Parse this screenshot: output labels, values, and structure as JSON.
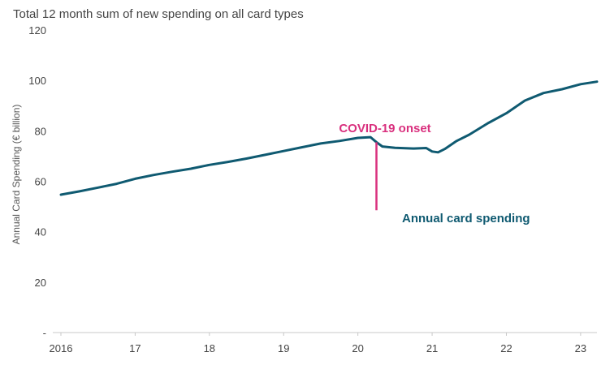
{
  "chart_data": {
    "type": "line",
    "title": "Total 12 month sum of new spending on all card types",
    "ylabel": "Annual  Card Spending (€ billion)",
    "xlabel": "",
    "ylim": [
      0,
      120
    ],
    "xlim": [
      2016.0,
      2023.22
    ],
    "grid": false,
    "y_ticks": [
      0,
      20,
      40,
      60,
      80,
      100,
      120
    ],
    "y_tick_labels": [
      "-",
      "20",
      "40",
      "60",
      "80",
      "100",
      "120"
    ],
    "x_ticks": [
      2016,
      2017,
      2018,
      2019,
      2020,
      2021,
      2022,
      2023
    ],
    "x_tick_labels": [
      "2016",
      "17",
      "18",
      "19",
      "20",
      "21",
      "22",
      "23"
    ],
    "series": [
      {
        "name": "Annual card spending",
        "color": "#0f5a71",
        "x": [
          2016.0,
          2016.25,
          2016.5,
          2016.75,
          2017.0,
          2017.25,
          2017.5,
          2017.75,
          2018.0,
          2018.25,
          2018.5,
          2018.75,
          2019.0,
          2019.25,
          2019.5,
          2019.75,
          2020.0,
          2020.17,
          2020.25,
          2020.33,
          2020.5,
          2020.75,
          2020.92,
          2021.0,
          2021.08,
          2021.17,
          2021.33,
          2021.5,
          2021.75,
          2022.0,
          2022.25,
          2022.5,
          2022.75,
          2023.0,
          2023.22
        ],
        "y": [
          54.7,
          56.0,
          57.5,
          59.0,
          61.0,
          62.5,
          63.8,
          65.0,
          66.5,
          67.7,
          69.0,
          70.5,
          72.0,
          73.5,
          75.0,
          76.0,
          77.2,
          77.5,
          75.5,
          73.8,
          73.3,
          73.0,
          73.2,
          71.8,
          71.5,
          72.8,
          76.0,
          78.5,
          83.0,
          87.0,
          92.0,
          95.0,
          96.5,
          98.5,
          99.5
        ]
      }
    ],
    "annotations": [
      {
        "text": "COVID-19 onset",
        "x": 2020.25,
        "y_top": 75.5,
        "y_bottom": 48.5,
        "color": "#d9307e"
      },
      {
        "text": "Annual card spending",
        "color": "#0f5a71"
      }
    ]
  }
}
